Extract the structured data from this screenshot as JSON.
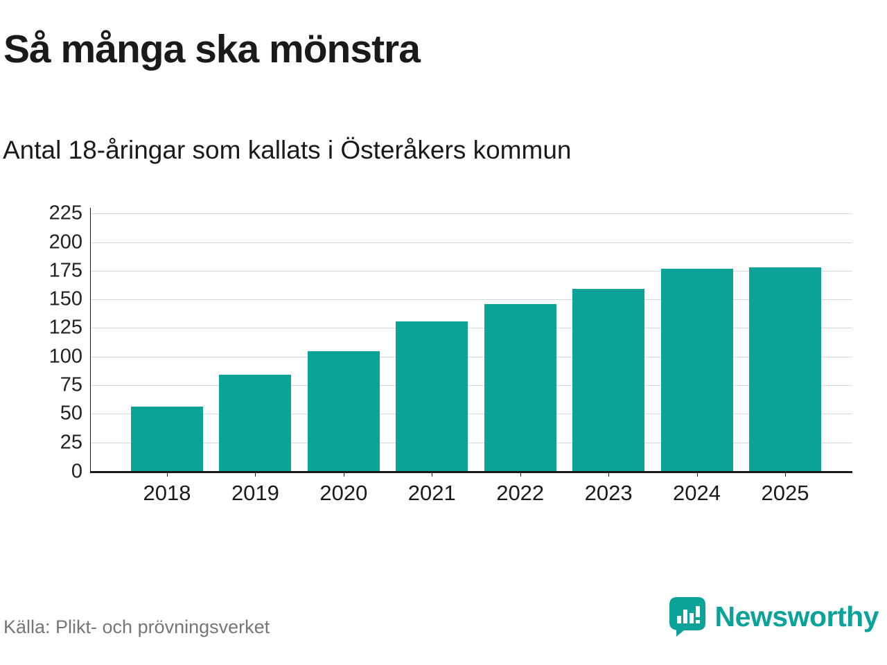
{
  "header": {
    "title": "Så många ska mönstra",
    "subtitle": "Antal 18-åringar som kallats i Österåkers kommun"
  },
  "chart_data": {
    "type": "bar",
    "title": "Så många ska mönstra",
    "subtitle": "Antal 18-åringar som kallats i Österåkers kommun",
    "categories": [
      "2018",
      "2019",
      "2020",
      "2021",
      "2022",
      "2023",
      "2024",
      "2025"
    ],
    "values": [
      56,
      84,
      105,
      131,
      146,
      159,
      177,
      178
    ],
    "xlabel": "",
    "ylabel": "",
    "yticks": [
      0,
      25,
      50,
      75,
      100,
      125,
      150,
      175,
      200,
      225
    ],
    "ylim": [
      0,
      230
    ],
    "grid": true,
    "legend": false,
    "bar_color": "#0ba29a",
    "grid_color": "#d9d9d9",
    "axis_color": "#1a1a1a"
  },
  "footer": {
    "source": "Källa: Plikt- och prövningsverket",
    "brand": "Newsworthy",
    "brand_color": "#0ba29a"
  }
}
